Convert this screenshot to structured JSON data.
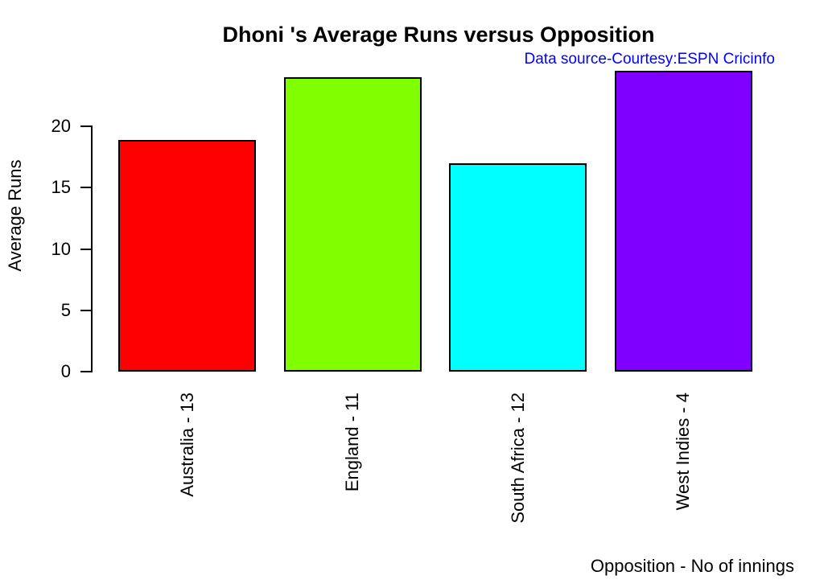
{
  "chart_data": {
    "type": "bar",
    "title": "Dhoni 's Average Runs versus Opposition",
    "annotation": "Data source-Courtesy:ESPN Cricinfo",
    "annotation_color": "#0000FF",
    "categories": [
      "Australia - 13",
      "England - 11",
      "South Africa - 12",
      "West Indies - 4"
    ],
    "values": [
      18.9,
      24,
      17,
      24.5
    ],
    "bar_colors": [
      "#FF0000",
      "#80FF00",
      "#00FFFF",
      "#8000FF"
    ],
    "bar_border_color": "#000000",
    "xlabel": "Opposition - No of innings",
    "ylabel": "Average Runs",
    "yticks": [
      0,
      5,
      10,
      15,
      20
    ],
    "ylim": [
      0,
      25.2
    ],
    "grid": false,
    "legend": "none",
    "category_label_rotation_deg": 90,
    "background_color": "#FFFFFF",
    "text_color": "#000000"
  }
}
